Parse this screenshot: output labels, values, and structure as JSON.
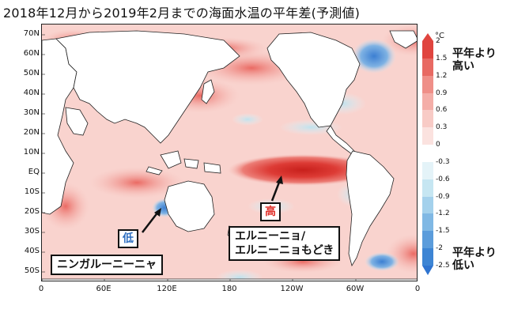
{
  "title": "2018年12月から2019年2月までの海面水温の平年差(予測値)",
  "lat_labels": [
    "70N",
    "60N",
    "50N",
    "40N",
    "30N",
    "20N",
    "10N",
    "EQ",
    "10S",
    "20S",
    "30S",
    "40S",
    "50S"
  ],
  "lon_labels": [
    "0",
    "60E",
    "120E",
    "180",
    "120W",
    "60W",
    "0"
  ],
  "colorbar": {
    "unit": "°C",
    "levels": [
      "2",
      "1.5",
      "1.2",
      "0.9",
      "0.6",
      "0.3",
      "0",
      "-0.3",
      "-0.6",
      "-0.9",
      "-1.2",
      "-1.5",
      "-2",
      "-2.5"
    ],
    "colors": [
      "#e0453f",
      "#e86a63",
      "#ef8f88",
      "#f4aea8",
      "#f8cbc6",
      "#fbe2df",
      "#ffffff",
      "#e4f3f8",
      "#c6e6f2",
      "#a4d1ec",
      "#80b8e4",
      "#5b9cdb",
      "#3d85d4"
    ]
  },
  "legend_warm": "平年より\n高い",
  "legend_cold": "平年より\n低い",
  "annotations": {
    "high_marker": "高",
    "low_marker": "低",
    "el_nino": "エルニーニョ/\nエルニーニョもどき",
    "ningaloo": "ニンガルーニーニャ"
  },
  "colors": {
    "high": "#e0302a",
    "low": "#2d6ec0",
    "land": "#ffffff",
    "coast": "#222222"
  }
}
